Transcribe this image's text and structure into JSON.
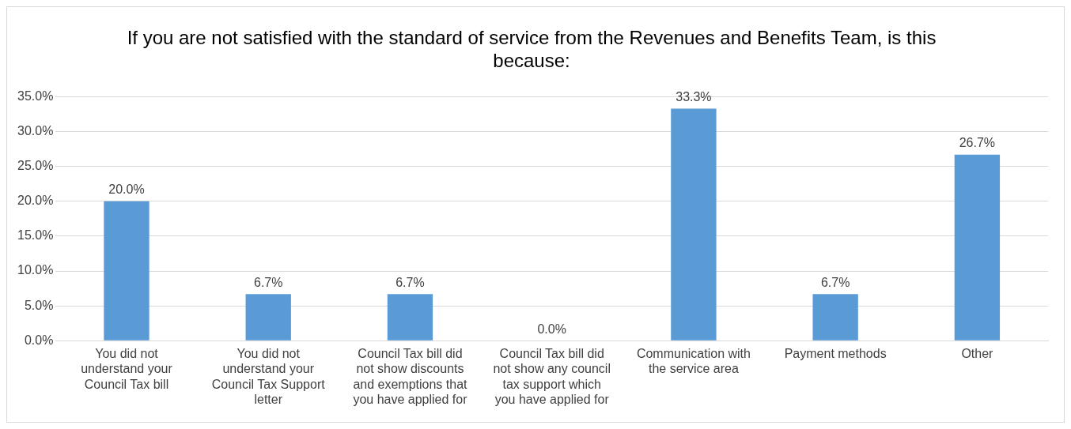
{
  "chart_data": {
    "type": "bar",
    "title": "If you are not satisfied with the standard of service from the Revenues and Benefits Team, is this because:",
    "categories": [
      "You did not understand your Council Tax bill",
      "You did not understand your Council Tax Support letter",
      "Council Tax bill did not show discounts and exemptions that you have applied for",
      "Council Tax bill did not show any council tax support which you have applied for",
      "Communication with the service area",
      "Payment methods",
      "Other"
    ],
    "values": [
      20.0,
      6.7,
      6.7,
      0.0,
      33.3,
      6.7,
      26.7
    ],
    "value_labels": [
      "20.0%",
      "6.7%",
      "6.7%",
      "0.0%",
      "33.3%",
      "6.7%",
      "26.7%"
    ],
    "color": "#5b9bd5",
    "ylim": [
      0,
      35
    ],
    "yticks": [
      {
        "value": 0,
        "label": "0.0%"
      },
      {
        "value": 5,
        "label": "5.0%"
      },
      {
        "value": 10,
        "label": "10.0%"
      },
      {
        "value": 15,
        "label": "15.0%"
      },
      {
        "value": 20,
        "label": "20.0%"
      },
      {
        "value": 25,
        "label": "25.0%"
      },
      {
        "value": 30,
        "label": "30.0%"
      },
      {
        "value": 35,
        "label": "35.0%"
      }
    ],
    "grid": "y",
    "legend": false
  }
}
